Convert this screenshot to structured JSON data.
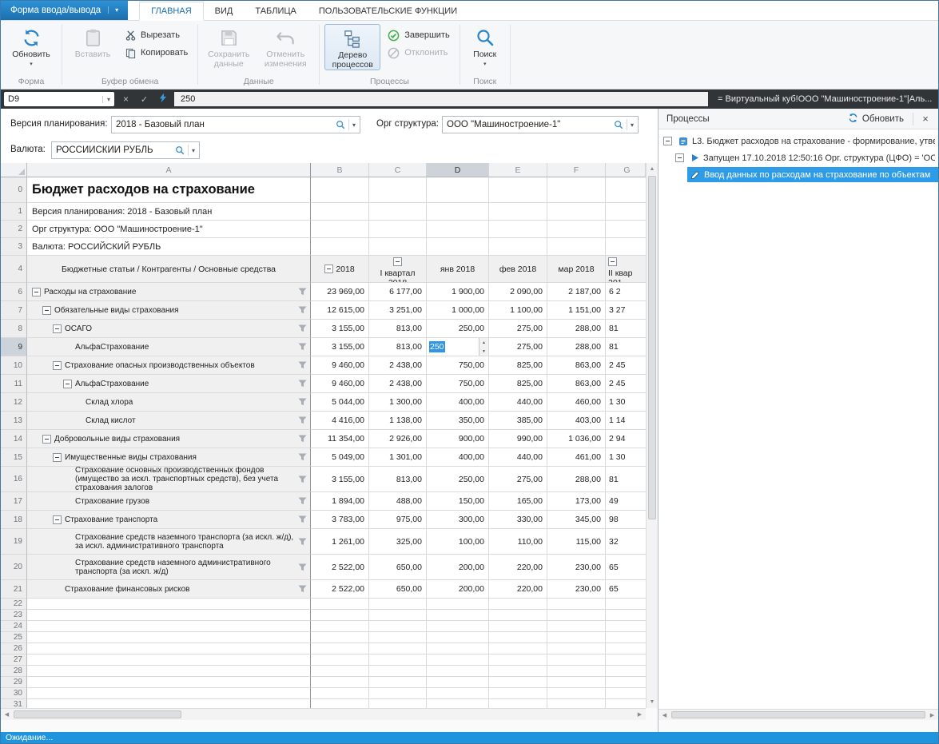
{
  "window": {
    "menu_button": "Форма ввода/вывода",
    "tabs": [
      {
        "label": "ГЛАВНАЯ",
        "active": true
      },
      {
        "label": "ВИД",
        "active": false
      },
      {
        "label": "ТАБЛИЦА",
        "active": false
      },
      {
        "label": "ПОЛЬЗОВАТЕЛЬСКИЕ ФУНКЦИИ",
        "active": false
      }
    ],
    "status": "Ожидание..."
  },
  "ribbon": {
    "refresh": "Обновить",
    "paste": "Вставить",
    "cut": "Вырезать",
    "copy": "Копировать",
    "save_data": "Сохранить данные",
    "undo_changes": "Отменить изменения",
    "process_tree": "Дерево процессов",
    "finish": "Завершить",
    "reject": "Отклонить",
    "search": "Поиск",
    "groups": {
      "form": "Форма",
      "clipboard": "Буфер обмена",
      "data": "Данные",
      "processes": "Процессы",
      "search": "Поиск"
    }
  },
  "formula_bar": {
    "cell_ref": "D9",
    "cancel_glyph": "×",
    "confirm_glyph": "✓",
    "value": "250",
    "expression": "= Виртуальный куб!ООО \"Машиностроение-1\"|Аль..."
  },
  "filters": {
    "version_label": "Версия планирования:",
    "version_value": "2018 - Базовый план",
    "org_label": "Орг структура:",
    "org_value": "ООО \"Машиностроение-1\"",
    "currency_label": "Валюта:",
    "currency_value": "РОССИЙСКИЙ РУБЛЬ"
  },
  "sheet": {
    "columns": [
      "A",
      "B",
      "C",
      "D",
      "E",
      "F",
      "G"
    ],
    "selected_column": "D",
    "active_cell": "D9",
    "title_rows": [
      {
        "num": "0",
        "text": "Бюджет расходов на страхование"
      },
      {
        "num": "1",
        "text": "Версия планирования: 2018 - Базовый план"
      },
      {
        "num": "2",
        "text": "Орг структура: ООО \"Машиностроение-1\""
      },
      {
        "num": "3",
        "text": "Валюта: РОССИЙСКИЙ РУБЛЬ"
      }
    ],
    "header_row": {
      "num": "4",
      "label": "Бюджетные статьи / Контрагенты / Основные средства",
      "cols": [
        {
          "text": "2018",
          "collapse": true
        },
        {
          "text": "I квартал 2018",
          "collapse": true
        },
        {
          "text": "янв 2018",
          "collapse": false
        },
        {
          "text": "фев 2018",
          "collapse": false
        },
        {
          "text": "мар 2018",
          "collapse": false
        },
        {
          "text": "II квар 201",
          "collapse": true
        }
      ]
    },
    "rows": [
      {
        "num": "6",
        "indent": 0,
        "collapse": true,
        "label": "Расходы на страхование",
        "values": [
          "23 969,00",
          "6 177,00",
          "1 900,00",
          "2 090,00",
          "2 187,00",
          "6 2"
        ]
      },
      {
        "num": "7",
        "indent": 1,
        "collapse": true,
        "label": "Обязательные виды страхования",
        "values": [
          "12 615,00",
          "3 251,00",
          "1 000,00",
          "1 100,00",
          "1 151,00",
          "3 27"
        ]
      },
      {
        "num": "8",
        "indent": 2,
        "collapse": true,
        "label": "ОСАГО",
        "values": [
          "3 155,00",
          "813,00",
          "250,00",
          "275,00",
          "288,00",
          "81"
        ]
      },
      {
        "num": "9",
        "indent": 3,
        "collapse": false,
        "active": true,
        "edit_col": 2,
        "label": "АльфаСтрахование",
        "values": [
          "3 155,00",
          "813,00",
          "250",
          "275,00",
          "288,00",
          "81"
        ]
      },
      {
        "num": "10",
        "indent": 2,
        "collapse": true,
        "label": "Страхование опасных производственных объектов",
        "values": [
          "9 460,00",
          "2 438,00",
          "750,00",
          "825,00",
          "863,00",
          "2 45"
        ]
      },
      {
        "num": "11",
        "indent": 3,
        "collapse": true,
        "label": "АльфаСтрахование",
        "values": [
          "9 460,00",
          "2 438,00",
          "750,00",
          "825,00",
          "863,00",
          "2 45"
        ]
      },
      {
        "num": "12",
        "indent": 4,
        "collapse": false,
        "label": "Склад хлора",
        "values": [
          "5 044,00",
          "1 300,00",
          "400,00",
          "440,00",
          "460,00",
          "1 30"
        ]
      },
      {
        "num": "13",
        "indent": 4,
        "collapse": false,
        "label": "Склад кислот",
        "values": [
          "4 416,00",
          "1 138,00",
          "350,00",
          "385,00",
          "403,00",
          "1 14"
        ]
      },
      {
        "num": "14",
        "indent": 1,
        "collapse": true,
        "label": "Добровольные виды страхования",
        "values": [
          "11 354,00",
          "2 926,00",
          "900,00",
          "990,00",
          "1 036,00",
          "2 94"
        ]
      },
      {
        "num": "15",
        "indent": 2,
        "collapse": true,
        "label": "Имущественные виды страхования",
        "values": [
          "5 049,00",
          "1 301,00",
          "400,00",
          "440,00",
          "461,00",
          "1 30"
        ]
      },
      {
        "num": "16",
        "indent": 3,
        "collapse": false,
        "tall": true,
        "label": "Страхование основных производственных фондов (имущество за искл. транспортных средств), без учета страхования залогов",
        "values": [
          "3 155,00",
          "813,00",
          "250,00",
          "275,00",
          "288,00",
          "81"
        ]
      },
      {
        "num": "17",
        "indent": 3,
        "collapse": false,
        "label": "Страхование грузов",
        "values": [
          "1 894,00",
          "488,00",
          "150,00",
          "165,00",
          "173,00",
          "49"
        ]
      },
      {
        "num": "18",
        "indent": 2,
        "collapse": true,
        "label": "Страхование транспорта",
        "values": [
          "3 783,00",
          "975,00",
          "300,00",
          "330,00",
          "345,00",
          "98"
        ]
      },
      {
        "num": "19",
        "indent": 3,
        "collapse": false,
        "tall": true,
        "label": "Страхование средств наземного транспорта (за искл. ж/д), за искл. административного транспорта",
        "values": [
          "1 261,00",
          "325,00",
          "100,00",
          "110,00",
          "115,00",
          "32"
        ]
      },
      {
        "num": "20",
        "indent": 3,
        "collapse": false,
        "tall": true,
        "label": "Страхование средств наземного административного транспорта (за искл. ж/д)",
        "values": [
          "2 522,00",
          "650,00",
          "200,00",
          "220,00",
          "230,00",
          "65"
        ]
      },
      {
        "num": "21",
        "indent": 2,
        "collapse": false,
        "label": "Страхование финансовых рисков",
        "values": [
          "2 522,00",
          "650,00",
          "200,00",
          "220,00",
          "230,00",
          "65"
        ]
      }
    ],
    "empty_row_nums": [
      "22",
      "23",
      "24",
      "25",
      "26",
      "27",
      "28",
      "29",
      "30",
      "31"
    ]
  },
  "processes_panel": {
    "title": "Процессы",
    "refresh": "Обновить",
    "close_glyph": "×",
    "items": [
      {
        "level": 0,
        "collapse": true,
        "icon": "process",
        "selected": false,
        "text": "L3. Бюджет расходов на страхование - формирование, утвер"
      },
      {
        "level": 1,
        "collapse": true,
        "icon": "play",
        "selected": false,
        "text": "Запущен 17.10.2018 12:50:16 Орг. структура (ЦФО) = 'ОО"
      },
      {
        "level": 2,
        "collapse": false,
        "icon": "pencil",
        "selected": true,
        "text": "Ввод данных по расходам на страхование по объектам"
      }
    ]
  }
}
